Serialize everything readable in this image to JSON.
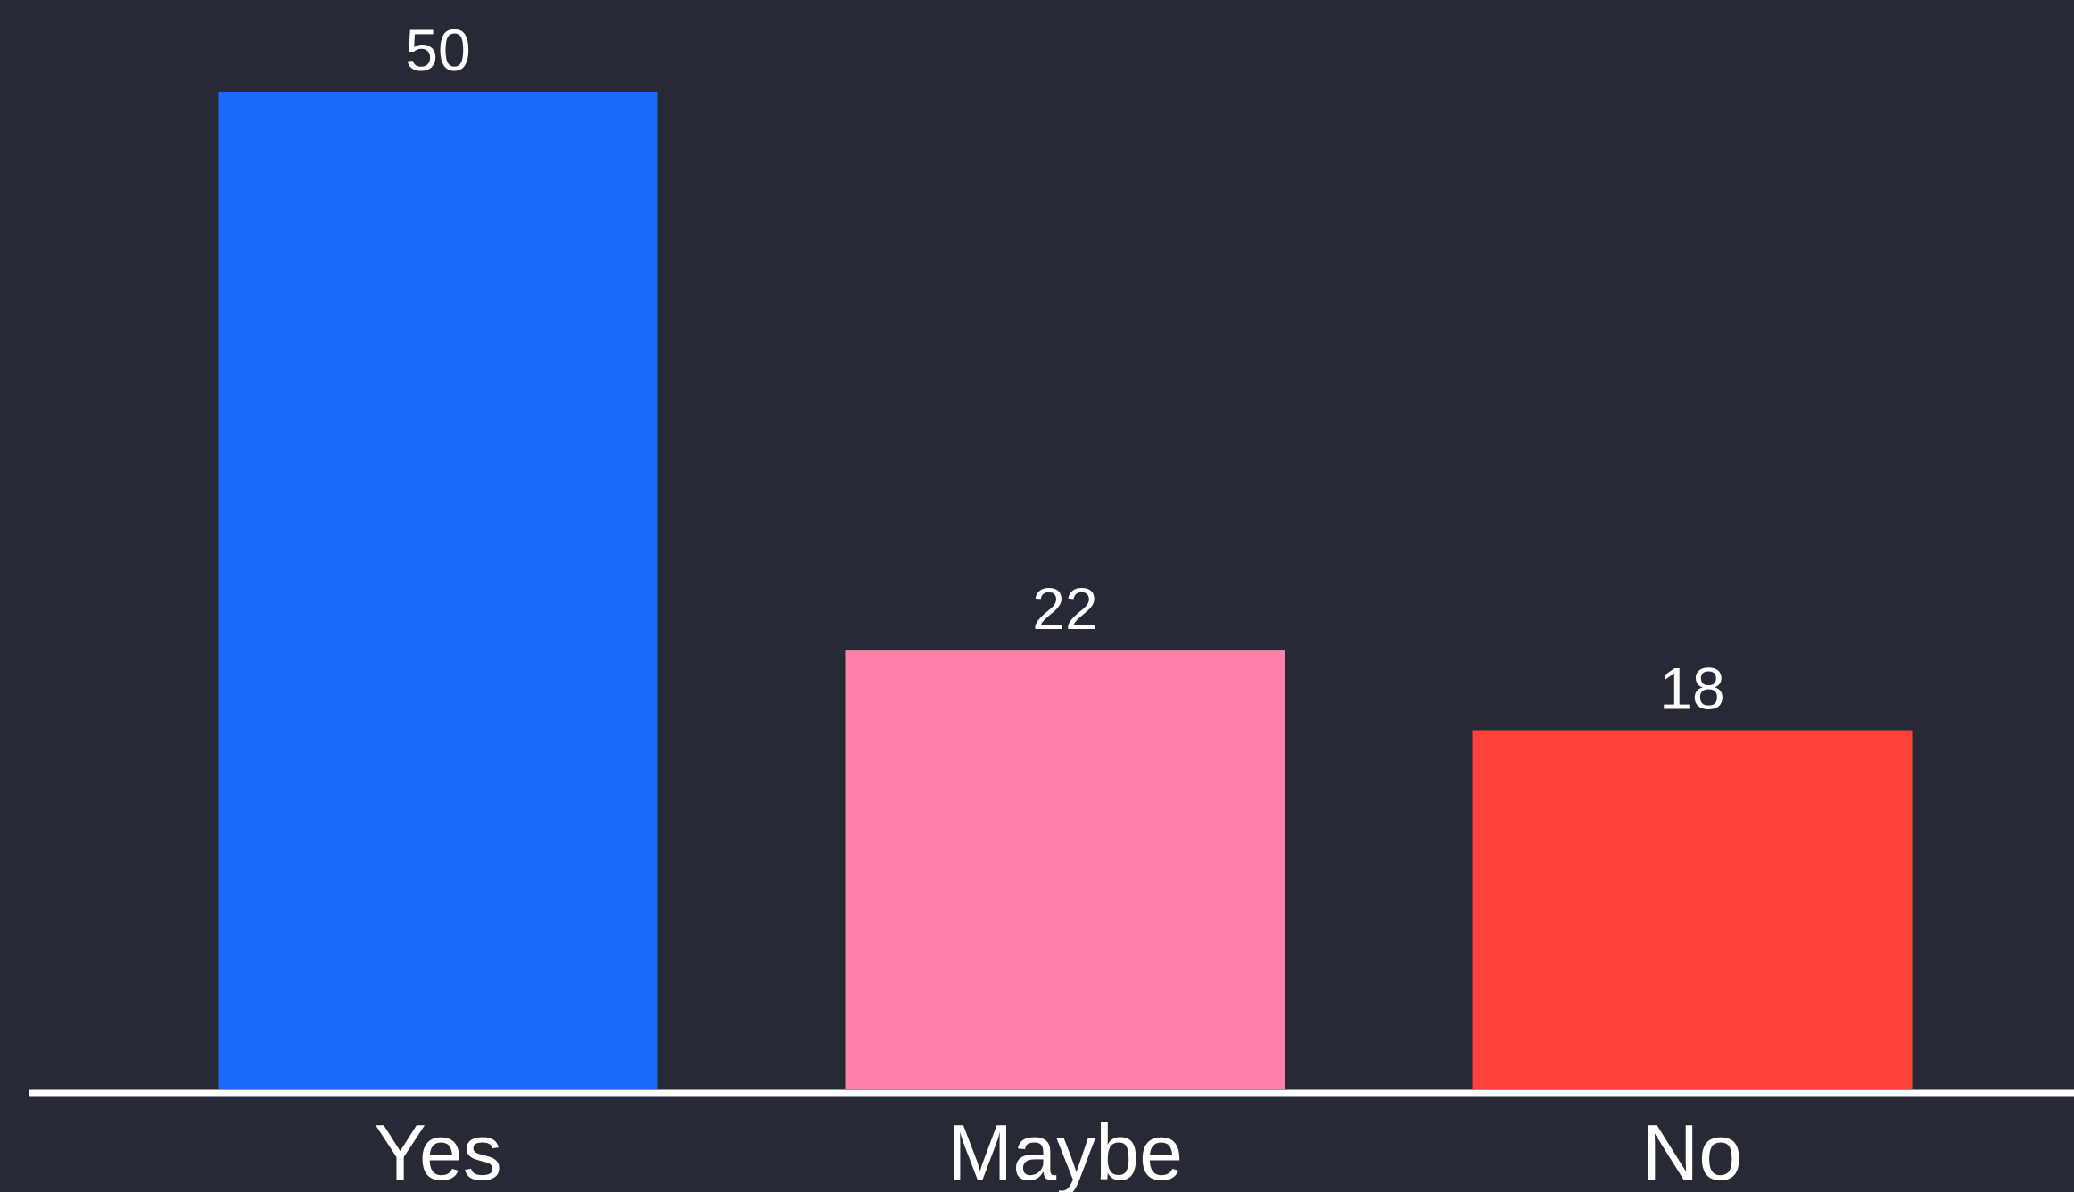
{
  "chart_data": {
    "type": "bar",
    "categories": [
      "Yes",
      "Maybe",
      "No"
    ],
    "values": [
      50,
      22,
      18
    ],
    "colors": [
      "#1a6afa",
      "#ff80a8",
      "#ff413a"
    ],
    "title": "",
    "xlabel": "",
    "ylabel": "",
    "ylim": [
      0,
      50
    ],
    "grid": false,
    "legend": "none",
    "data_labels": [
      "50",
      "22",
      "18"
    ],
    "background": "#272a35",
    "axis_color": "#ffffff"
  }
}
